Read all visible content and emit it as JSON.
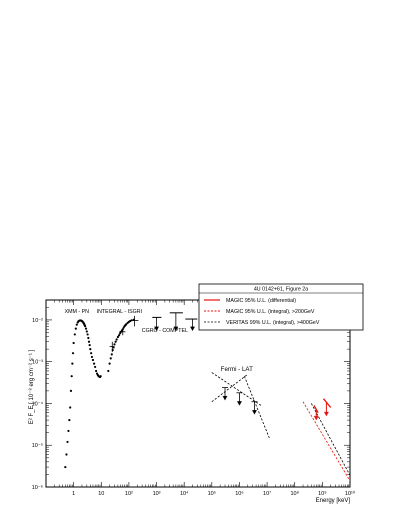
{
  "chart_data": {
    "type": "scatter",
    "log_x": true,
    "log_y": true,
    "xlabel": "Energy [keV]",
    "ylabel": "E² F_E [ 10⁻⁸ erg cm⁻² s⁻¹ ]",
    "xlim": [
      0.1,
      10000000000.0
    ],
    "ylim": [
      1e-06,
      0.03
    ],
    "x_ticks": [
      {
        "value": 1,
        "label": "1"
      },
      {
        "value": 10,
        "label": "10"
      },
      {
        "value": 100,
        "label": "10²"
      },
      {
        "value": 1000,
        "label": "10³"
      },
      {
        "value": 10000,
        "label": "10⁴"
      },
      {
        "value": 100000,
        "label": "10⁵"
      },
      {
        "value": 1000000,
        "label": "10⁶"
      },
      {
        "value": 10000000,
        "label": "10⁷"
      },
      {
        "value": 100000000,
        "label": "10⁸"
      },
      {
        "value": 1000000000,
        "label": "10⁹"
      },
      {
        "value": 10000000000,
        "label": "10¹⁰"
      }
    ],
    "y_ticks": [
      {
        "value": 1e-06,
        "label": "10⁻⁶"
      },
      {
        "value": 1e-05,
        "label": "10⁻⁵"
      },
      {
        "value": 0.0001,
        "label": "10⁻⁴"
      },
      {
        "value": 0.001,
        "label": "10⁻³"
      },
      {
        "value": 0.01,
        "label": "10⁻²"
      }
    ],
    "legend": {
      "placement": "top-right",
      "title": "4U 0142+61, Figure 2a",
      "entries": [
        {
          "label": "MAGIC 95% U.L. (differential)",
          "color": "#e8120c",
          "style": "solid"
        },
        {
          "label": "MAGIC 95% U.L. (integral), >200GeV",
          "color": "#e8120c",
          "style": "dashed"
        },
        {
          "label": "VERITAS 99% U.L. (integral), >400GeV",
          "color": "#000000",
          "style": "dashed"
        }
      ]
    },
    "annotations": [
      {
        "text": "XMM - PN",
        "x": 1.3,
        "y": 0.0145
      },
      {
        "text": "INTEGRAL - ISGRI",
        "x": 45,
        "y": 0.0145
      },
      {
        "text": "CGRO - COMPTEL",
        "x": 2000,
        "y": 0.0052
      },
      {
        "text": "Fermi - LAT",
        "x": 800000,
        "y": 0.0006
      }
    ],
    "series": [
      {
        "name": "XMM - PN",
        "kind": "points",
        "x": [
          0.5,
          0.55,
          0.6,
          0.65,
          0.7,
          0.75,
          0.8,
          0.85,
          0.9,
          0.95,
          1.0,
          1.1,
          1.2,
          1.3,
          1.4,
          1.5,
          1.6,
          1.7,
          1.8,
          1.9,
          2.0,
          2.1,
          2.2,
          2.3,
          2.4,
          2.5,
          2.6,
          2.8,
          3.0,
          3.2,
          3.4,
          3.6,
          3.8,
          4.0,
          4.3,
          4.6,
          5.0,
          5.5,
          6.0,
          6.5,
          7.0,
          7.5,
          8.0,
          8.5,
          9.0,
          9.5
        ],
        "y": [
          3e-06,
          6e-06,
          1.2e-05,
          2.2e-05,
          4e-05,
          8e-05,
          0.0002,
          0.00045,
          0.0009,
          0.0016,
          0.0028,
          0.0045,
          0.0062,
          0.0077,
          0.0087,
          0.0093,
          0.0096,
          0.0097,
          0.0097,
          0.0096,
          0.0094,
          0.0091,
          0.0088,
          0.0084,
          0.008,
          0.0075,
          0.0071,
          0.0062,
          0.0053,
          0.0045,
          0.0037,
          0.003,
          0.0025,
          0.002,
          0.0016,
          0.0013,
          0.0011,
          0.0009,
          0.00075,
          0.0006,
          0.00052,
          0.00048,
          0.00045,
          0.00044,
          0.00043,
          0.00045
        ]
      },
      {
        "name": "INTEGRAL - ISGRI",
        "kind": "points",
        "x": [
          18,
          20,
          22,
          24,
          26,
          28,
          30,
          33,
          36,
          40,
          44,
          48,
          52,
          56,
          60,
          65,
          70,
          75,
          80,
          90,
          100,
          110,
          125,
          150
        ],
        "y": [
          0.0006,
          0.0009,
          0.0012,
          0.0015,
          0.0019,
          0.0022,
          0.0026,
          0.003,
          0.0034,
          0.0039,
          0.0043,
          0.0048,
          0.0052,
          0.0056,
          0.006,
          0.0066,
          0.0071,
          0.0075,
          0.0079,
          0.0085,
          0.009,
          0.0094,
          0.0098,
          0.0101
        ]
      },
      {
        "name": "INTEGRAL - ISGRI (binned, with errors)",
        "kind": "errorbars",
        "points": [
          {
            "x": 25,
            "y": 0.0023,
            "xlo": 20,
            "xhi": 30,
            "ylo": 0.0017,
            "yhi": 0.003
          },
          {
            "x": 60,
            "y": 0.0052,
            "xlo": 45,
            "xhi": 75,
            "ylo": 0.0043,
            "yhi": 0.0062
          },
          {
            "x": 160,
            "y": 0.0097,
            "xlo": 110,
            "xhi": 220,
            "ylo": 0.007,
            "yhi": 0.0125
          }
        ]
      },
      {
        "name": "CGRO - COMPTEL",
        "kind": "upper_limits",
        "points": [
          {
            "x": 1000,
            "y": 0.0115,
            "xlo": 700,
            "xhi": 1500
          },
          {
            "x": 5000,
            "y": 0.0148,
            "xlo": 3000,
            "xhi": 9000
          },
          {
            "x": 20000,
            "y": 0.0105,
            "xlo": 11000,
            "xhi": 30000
          }
        ],
        "arrow_to": 0.0055
      },
      {
        "name": "Fermi - LAT",
        "kind": "upper_limits",
        "points": [
          {
            "x": 300000,
            "y": 0.00024
          },
          {
            "x": 1000000,
            "y": 0.00018
          },
          {
            "x": 3500000,
            "y": 0.00011
          }
        ],
        "arrow_factor": 0.5
      },
      {
        "name": "Fermi - LAT (bow-tie)",
        "kind": "lines",
        "color": "#000000",
        "style": "dashed",
        "segments": [
          [
            [
              100000,
              0.00055
            ],
            [
              6000000,
              9e-05
            ]
          ],
          [
            [
              100000,
              0.00011
            ],
            [
              2000000,
              0.0005
            ]
          ],
          [
            [
              1500000,
              0.00045
            ],
            [
              12000000,
              1.5e-05
            ]
          ]
        ]
      },
      {
        "name": "MAGIC 95% U.L. (differential)",
        "kind": "differential_ul",
        "color": "#e8120c",
        "points": [
          {
            "x1": 500000000,
            "y1": 9e-05,
            "x2": 700000000,
            "y2": 6e-05,
            "arrow_x": 600000000,
            "arrow_to": 4e-05
          },
          {
            "x1": 1100000000,
            "y1": 0.00013,
            "x2": 2000000000,
            "y2": 8e-05,
            "arrow_x": 1400000000,
            "arrow_to": 5e-05
          }
        ]
      },
      {
        "name": "MAGIC 95% U.L. (integral), >200GeV",
        "kind": "lines",
        "color": "#e8120c",
        "style": "dashed",
        "segments": [
          [
            [
              200000000,
              0.00011
            ],
            [
              10000000000,
              1.4e-06
            ]
          ]
        ]
      },
      {
        "name": "VERITAS 99% U.L. (integral), >400GeV",
        "kind": "lines",
        "color": "#000000",
        "style": "dashed",
        "segments": [
          [
            [
              400000000,
              0.0001
            ],
            [
              10000000000,
              1.9e-06
            ]
          ]
        ]
      }
    ]
  }
}
